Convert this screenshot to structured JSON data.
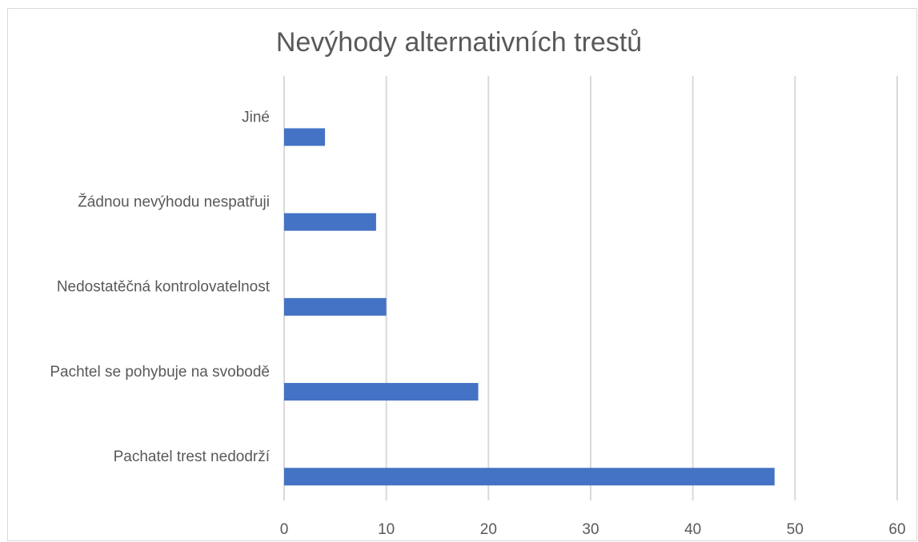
{
  "chart_data": {
    "type": "bar",
    "orientation": "horizontal",
    "title": "Nevýhody alternativních trestů",
    "categories": [
      "Jiné",
      "Žádnou nevýhodu nespatřuji",
      "Nedostatěčná kontrolovatelnost",
      "Pachtel se pohybuje na svobodě",
      "Pachatel trest nedodrží"
    ],
    "values": [
      4,
      9,
      10,
      19,
      48
    ],
    "xlim": [
      0,
      60
    ],
    "xticks": [
      "0",
      "10",
      "20",
      "30",
      "40",
      "50",
      "60"
    ],
    "grid": true,
    "legend": "none",
    "bar_color": "#4472c4",
    "grid_color": "#d9d9d9",
    "text_color": "#595959"
  }
}
